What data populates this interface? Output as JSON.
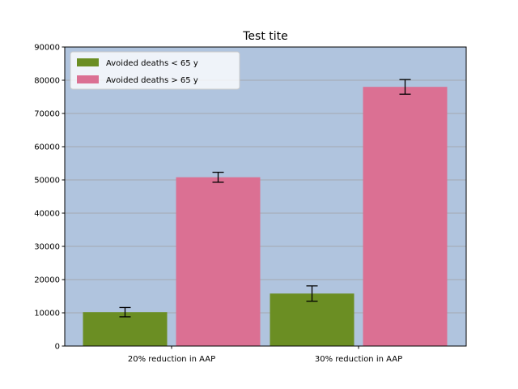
{
  "chart_data": {
    "type": "bar",
    "title": "Test tite",
    "xlabel": "",
    "ylabel": "",
    "categories": [
      "20% reduction in AAP",
      "30% reduction in AAP"
    ],
    "series": [
      {
        "name": "Avoided deaths < 65 y",
        "values": [
          10200,
          15800
        ],
        "errors": [
          1400,
          2300
        ],
        "color": "#6b8e23"
      },
      {
        "name": "Avoided deaths > 65 y",
        "values": [
          50800,
          78000
        ],
        "errors": [
          1500,
          2200
        ],
        "color": "#db7093"
      }
    ],
    "ylim": [
      0,
      90000
    ],
    "yticks": [
      0,
      10000,
      20000,
      30000,
      40000,
      50000,
      60000,
      70000,
      80000,
      90000
    ],
    "grid": true,
    "legend_position": "top-left",
    "background_color": "#b0c4de"
  }
}
